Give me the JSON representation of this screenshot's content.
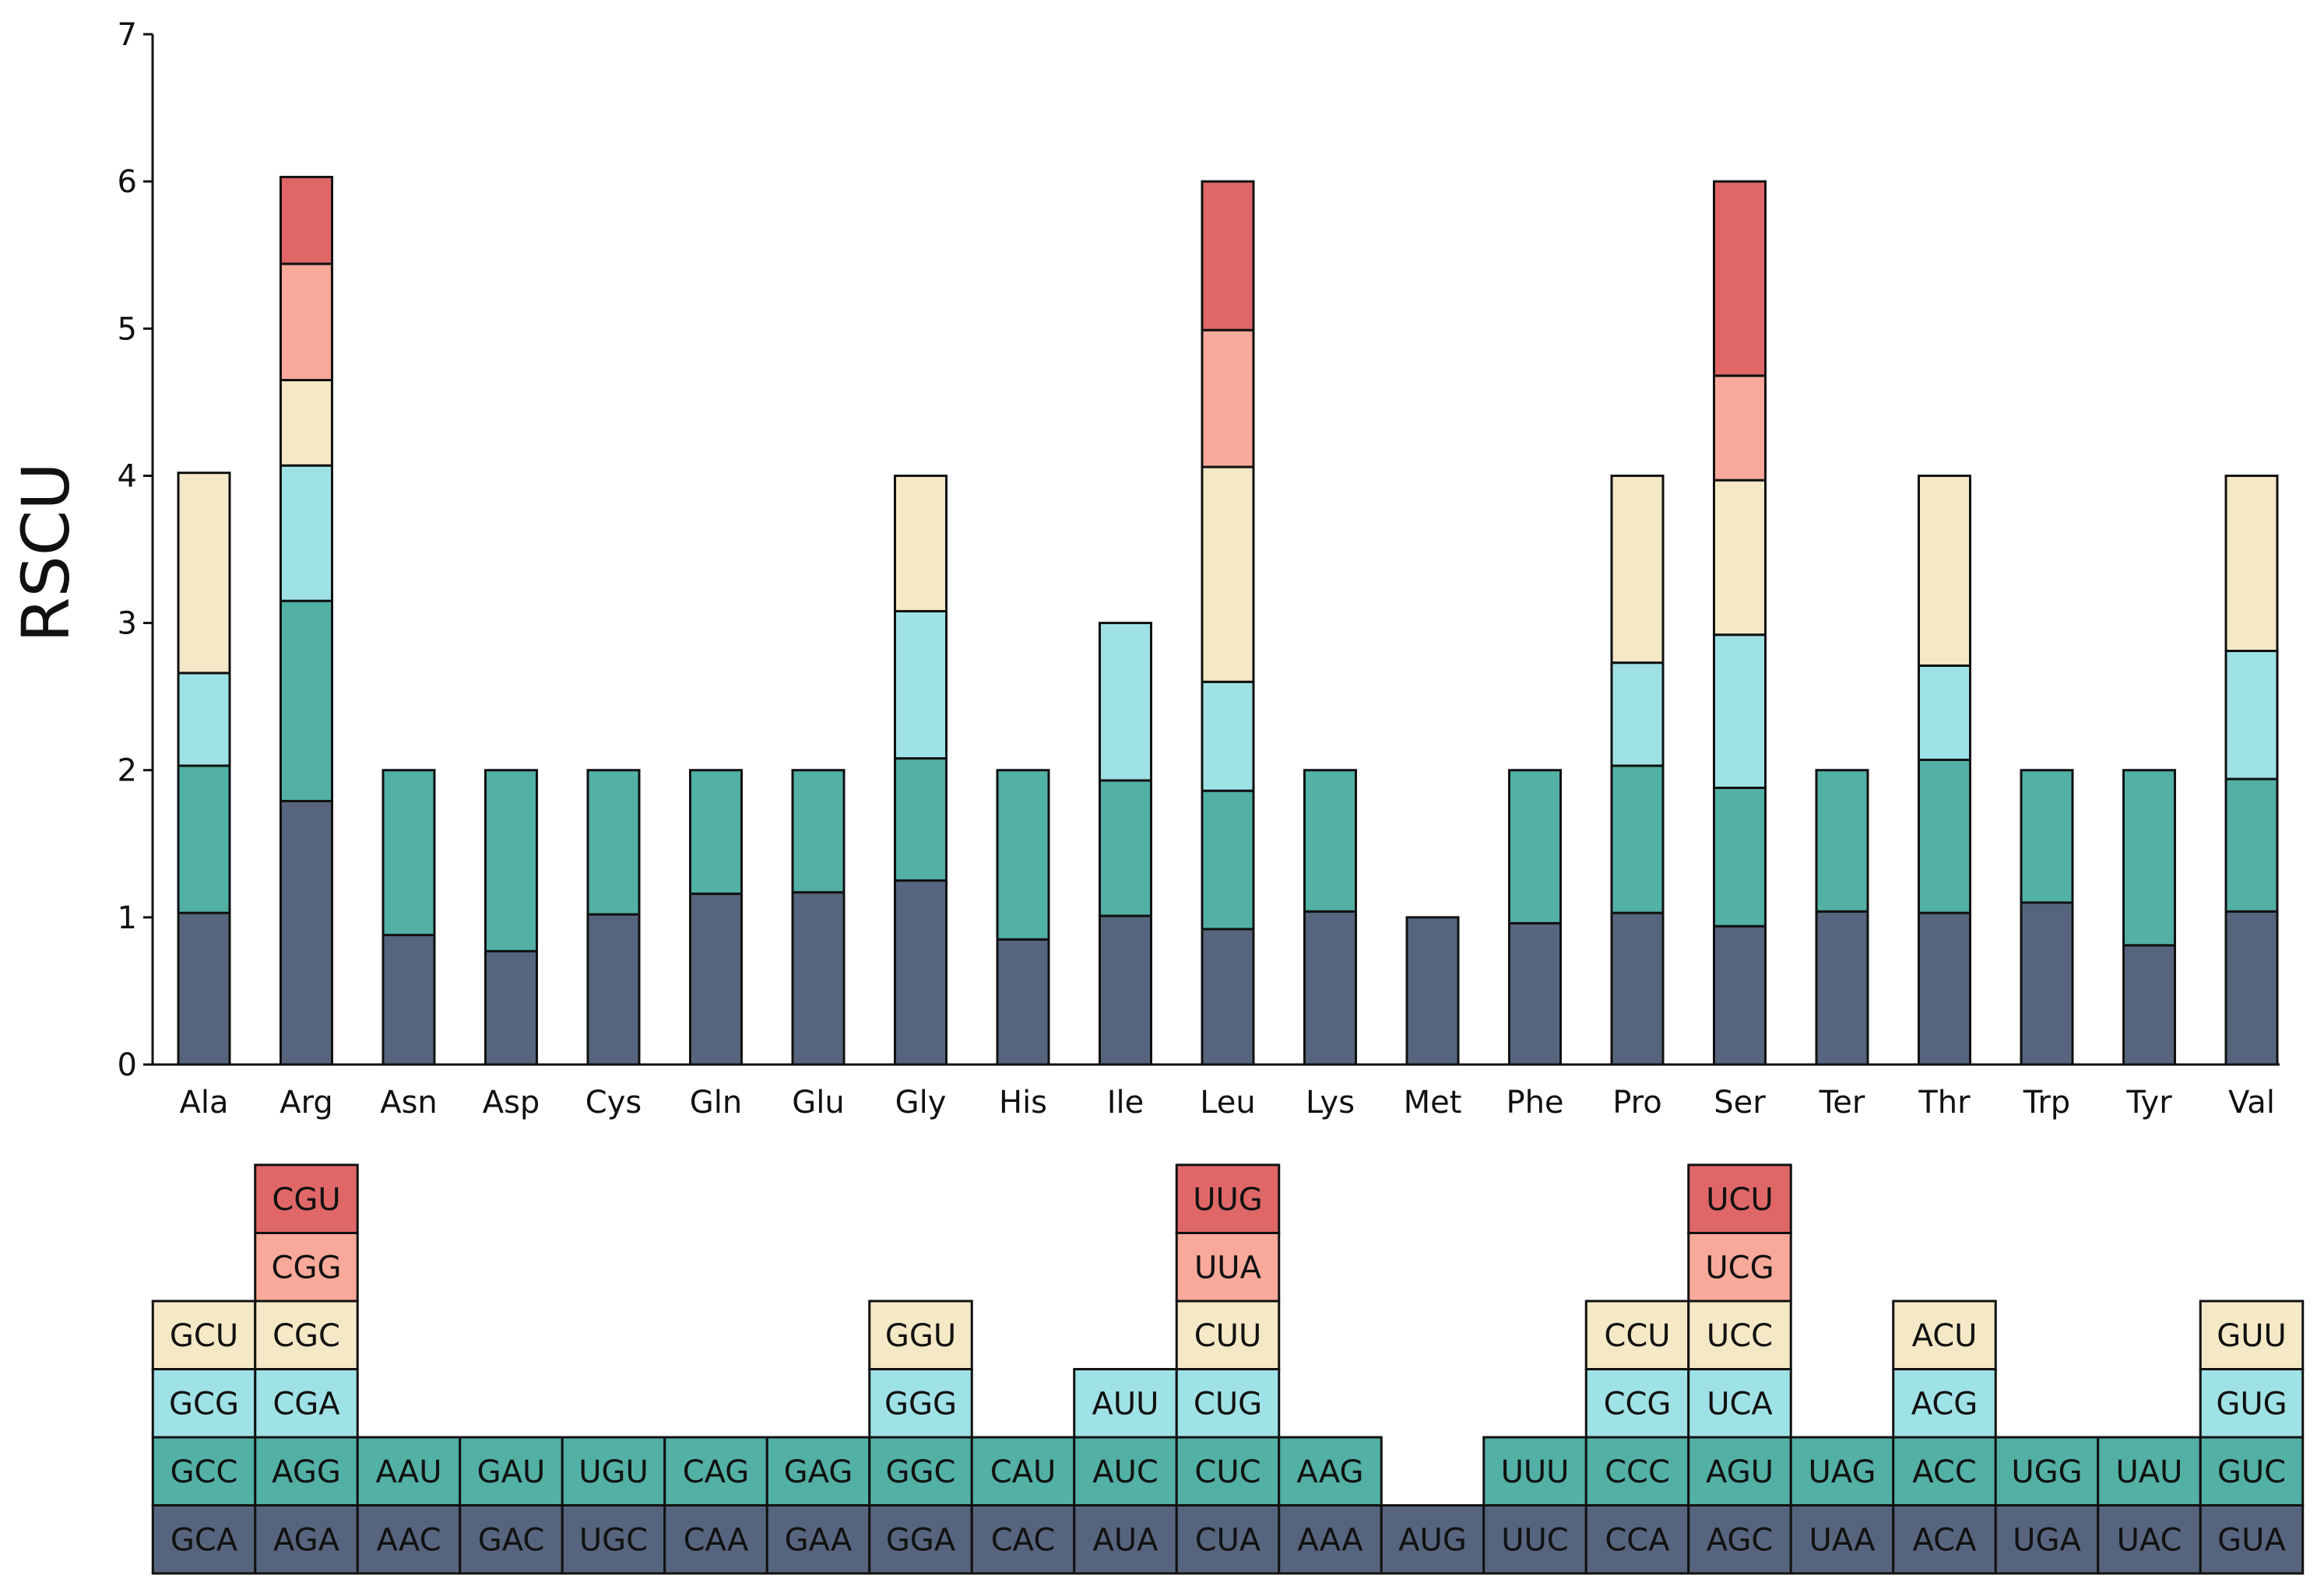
{
  "chart_data": {
    "type": "bar",
    "stacked": true,
    "title": "",
    "xlabel": "",
    "ylabel": "RSCU",
    "ylim": [
      0,
      7
    ],
    "yticks": [
      0,
      1,
      2,
      3,
      4,
      5,
      6,
      7
    ],
    "categories": [
      "Ala",
      "Arg",
      "Asn",
      "Asp",
      "Cys",
      "Gln",
      "Glu",
      "Gly",
      "His",
      "Ile",
      "Leu",
      "Lys",
      "Met",
      "Phe",
      "Pro",
      "Ser",
      "Ter",
      "Thr",
      "Trp",
      "Tyr",
      "Val"
    ],
    "layer_colors": [
      "#56657d",
      "#52b0a5",
      "#9fe2e6",
      "#f4e8c6",
      "#f8a99a",
      "#e06767"
    ],
    "stacks": [
      [
        {
          "codon": "GCA",
          "value": 1.03
        },
        {
          "codon": "GCC",
          "value": 1.0
        },
        {
          "codon": "GCG",
          "value": 0.63
        },
        {
          "codon": "GCU",
          "value": 1.36
        }
      ],
      [
        {
          "codon": "AGA",
          "value": 1.79
        },
        {
          "codon": "AGG",
          "value": 1.36
        },
        {
          "codon": "CGA",
          "value": 0.92
        },
        {
          "codon": "CGC",
          "value": 0.58
        },
        {
          "codon": "CGG",
          "value": 0.79
        },
        {
          "codon": "CGU",
          "value": 0.59
        }
      ],
      [
        {
          "codon": "AAC",
          "value": 0.88
        },
        {
          "codon": "AAU",
          "value": 1.12
        }
      ],
      [
        {
          "codon": "GAC",
          "value": 0.77
        },
        {
          "codon": "GAU",
          "value": 1.23
        }
      ],
      [
        {
          "codon": "UGC",
          "value": 1.02
        },
        {
          "codon": "UGU",
          "value": 0.98
        }
      ],
      [
        {
          "codon": "CAA",
          "value": 1.16
        },
        {
          "codon": "CAG",
          "value": 0.84
        }
      ],
      [
        {
          "codon": "GAA",
          "value": 1.17
        },
        {
          "codon": "GAG",
          "value": 0.83
        }
      ],
      [
        {
          "codon": "GGA",
          "value": 1.25
        },
        {
          "codon": "GGC",
          "value": 0.83
        },
        {
          "codon": "GGG",
          "value": 1.0
        },
        {
          "codon": "GGU",
          "value": 0.92
        }
      ],
      [
        {
          "codon": "CAC",
          "value": 0.85
        },
        {
          "codon": "CAU",
          "value": 1.15
        }
      ],
      [
        {
          "codon": "AUA",
          "value": 1.01
        },
        {
          "codon": "AUC",
          "value": 0.92
        },
        {
          "codon": "AUU",
          "value": 1.07
        }
      ],
      [
        {
          "codon": "CUA",
          "value": 0.92
        },
        {
          "codon": "CUC",
          "value": 0.94
        },
        {
          "codon": "CUG",
          "value": 0.74
        },
        {
          "codon": "CUU",
          "value": 1.46
        },
        {
          "codon": "UUA",
          "value": 0.93
        },
        {
          "codon": "UUG",
          "value": 1.01
        }
      ],
      [
        {
          "codon": "AAA",
          "value": 1.04
        },
        {
          "codon": "AAG",
          "value": 0.96
        }
      ],
      [
        {
          "codon": "AUG",
          "value": 1.0
        }
      ],
      [
        {
          "codon": "UUC",
          "value": 0.96
        },
        {
          "codon": "UUU",
          "value": 1.04
        }
      ],
      [
        {
          "codon": "CCA",
          "value": 1.03
        },
        {
          "codon": "CCC",
          "value": 1.0
        },
        {
          "codon": "CCG",
          "value": 0.7
        },
        {
          "codon": "CCU",
          "value": 1.27
        }
      ],
      [
        {
          "codon": "AGC",
          "value": 0.94
        },
        {
          "codon": "AGU",
          "value": 0.94
        },
        {
          "codon": "UCA",
          "value": 1.04
        },
        {
          "codon": "UCC",
          "value": 1.05
        },
        {
          "codon": "UCG",
          "value": 0.71
        },
        {
          "codon": "UCU",
          "value": 1.32
        }
      ],
      [
        {
          "codon": "UAA",
          "value": 1.04
        },
        {
          "codon": "UAG",
          "value": 0.96
        }
      ],
      [
        {
          "codon": "ACA",
          "value": 1.03
        },
        {
          "codon": "ACC",
          "value": 1.04
        },
        {
          "codon": "ACG",
          "value": 0.64
        },
        {
          "codon": "ACU",
          "value": 1.29
        }
      ],
      [
        {
          "codon": "UGA",
          "value": 1.1
        },
        {
          "codon": "UGG",
          "value": 0.9
        }
      ],
      [
        {
          "codon": "UAC",
          "value": 0.81
        },
        {
          "codon": "UAU",
          "value": 1.19
        }
      ],
      [
        {
          "codon": "GUA",
          "value": 1.04
        },
        {
          "codon": "GUC",
          "value": 0.9
        },
        {
          "codon": "GUG",
          "value": 0.87
        },
        {
          "codon": "GUU",
          "value": 1.19
        }
      ]
    ]
  }
}
